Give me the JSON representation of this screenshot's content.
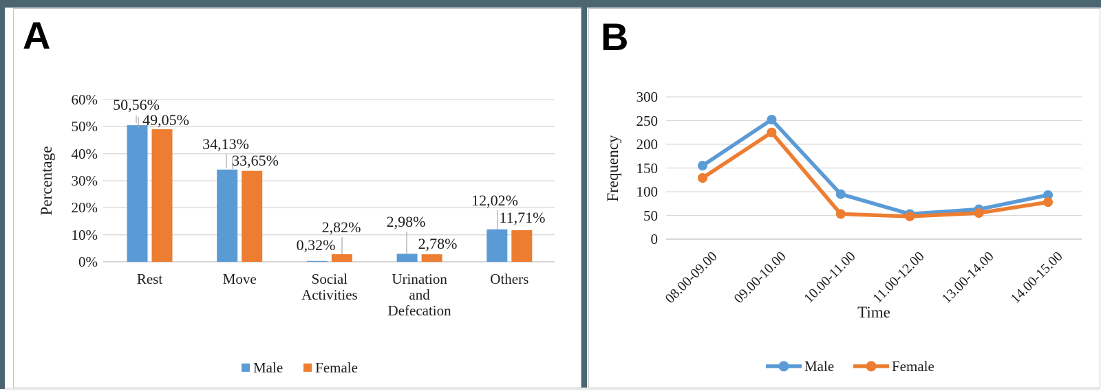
{
  "colors": {
    "male": "#5B9BD5",
    "female": "#ED7D31",
    "frame": "#4b6670",
    "gridline": "#d9d9d9",
    "axis_line": "#bfbfbf",
    "leader_line": "#a6a6a6",
    "panel_border": "#c4c4c4",
    "bottom_band": "#ebebeb"
  },
  "panels": [
    {
      "label": "A"
    },
    {
      "label": "B"
    }
  ],
  "chart_data": [
    {
      "type": "bar",
      "panel": "A",
      "title": "",
      "xlabel": "",
      "ylabel": "Percentage",
      "categories": [
        "Rest",
        "Move",
        "Social Activities",
        "Urination and Defecation",
        "Others"
      ],
      "category_lines": [
        [
          "Rest"
        ],
        [
          "Move"
        ],
        [
          "Social",
          "Activities"
        ],
        [
          "Urination",
          "and",
          "Defecation"
        ],
        [
          "Others"
        ]
      ],
      "series": [
        {
          "name": "Male",
          "values": [
            50.56,
            34.13,
            0.32,
            2.98,
            12.02
          ]
        },
        {
          "name": "Female",
          "values": [
            49.05,
            33.65,
            2.82,
            2.78,
            11.71
          ]
        }
      ],
      "value_labels": {
        "male": [
          "50,56%",
          "34,13%",
          "0,32%",
          "2,98%",
          "12,02%"
        ],
        "female": [
          "49,05%",
          "33,65%",
          "2,82%",
          "2,78%",
          "11,71%"
        ]
      },
      "y_ticks": [
        "0%",
        "10%",
        "20%",
        "30%",
        "40%",
        "50%",
        "60%"
      ],
      "y_tick_values": [
        0,
        10,
        20,
        30,
        40,
        50,
        60
      ],
      "ylim": [
        0,
        60
      ],
      "grid": true,
      "legend": [
        "Male",
        "Female"
      ],
      "legend_position": "bottom"
    },
    {
      "type": "line",
      "panel": "B",
      "title": "",
      "xlabel": "Time",
      "ylabel": "Frequency",
      "x": [
        "08.00-09.00",
        "09.00-10.00",
        "10.00-11.00",
        "11.00-12.00",
        "13.00-14.00",
        "14.00-15.00"
      ],
      "series": [
        {
          "name": "Male",
          "values": [
            155,
            252,
            95,
            53,
            63,
            93
          ]
        },
        {
          "name": "Female",
          "values": [
            129,
            225,
            53,
            48,
            55,
            78
          ]
        }
      ],
      "y_ticks": [
        "0",
        "50",
        "100",
        "150",
        "200",
        "250",
        "300"
      ],
      "y_tick_values": [
        0,
        50,
        100,
        150,
        200,
        250,
        300
      ],
      "ylim": [
        0,
        300
      ],
      "grid": true,
      "legend": [
        "Male",
        "Female"
      ],
      "legend_position": "bottom"
    }
  ]
}
